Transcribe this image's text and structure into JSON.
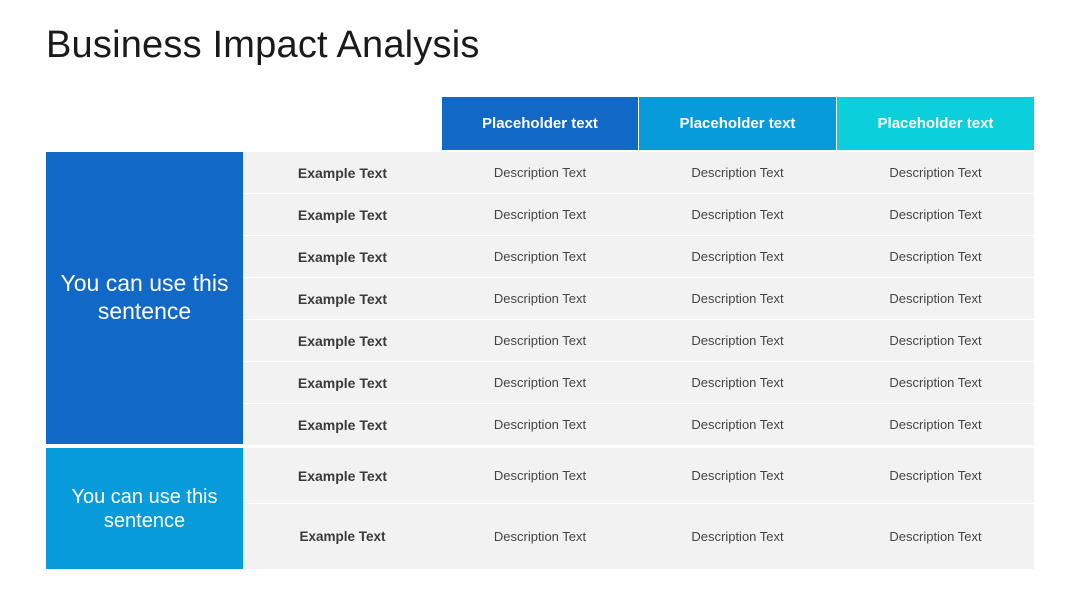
{
  "title": "Business Impact Analysis",
  "colors": {
    "header_1": "#1268c6",
    "header_2": "#079bdc",
    "header_3": "#0ccfdc",
    "group_1": "#1268c6",
    "group_2": "#079bdc",
    "row_bg": "#f2f2f2"
  },
  "headers": [
    "Placeholder text",
    "Placeholder text",
    "Placeholder text"
  ],
  "groups": [
    {
      "label": "You can use this sentence"
    },
    {
      "label": "You can use this sentence"
    }
  ],
  "rows": [
    {
      "label": "Example Text",
      "cells": [
        "Description Text",
        "Description Text",
        "Description Text"
      ]
    },
    {
      "label": "Example Text",
      "cells": [
        "Description Text",
        "Description Text",
        "Description Text"
      ]
    },
    {
      "label": "Example Text",
      "cells": [
        "Description Text",
        "Description Text",
        "Description Text"
      ]
    },
    {
      "label": "Example Text",
      "cells": [
        "Description Text",
        "Description Text",
        "Description Text"
      ]
    },
    {
      "label": "Example Text",
      "cells": [
        "Description Text",
        "Description Text",
        "Description Text"
      ]
    },
    {
      "label": "Example Text",
      "cells": [
        "Description Text",
        "Description Text",
        "Description Text"
      ]
    },
    {
      "label": "Example Text",
      "cells": [
        "Description Text",
        "Description Text",
        "Description Text"
      ]
    },
    {
      "label": "Example Text",
      "cells": [
        "Description Text",
        "Description Text",
        "Description Text"
      ]
    },
    {
      "label": "Example Text",
      "cells": [
        "Description Text",
        "Description Text",
        "Description Text"
      ]
    }
  ]
}
